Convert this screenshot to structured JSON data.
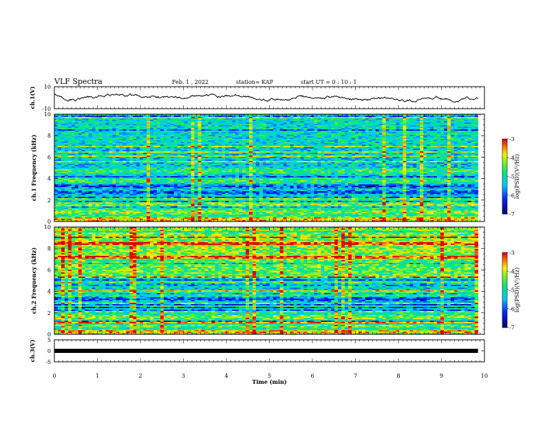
{
  "header": {
    "title": "VLF Spectra",
    "date": "Feb. 1 , 2022",
    "station": "station= KAP",
    "start": "start  UT =   0 : 10 : 1"
  },
  "chart_data": [
    {
      "type": "line",
      "id": "ch1-waveform",
      "ylabel": "ch.1(V)",
      "ylim": [
        -10,
        10
      ],
      "yticks": [
        "10",
        "-10"
      ],
      "x_range_min": [
        0,
        9.85
      ],
      "note_values": "random-walk voltage trace approx within [-6, 7] V"
    },
    {
      "type": "heatmap",
      "id": "ch1-spectrogram",
      "ylabel": "ch.1 Frequency (kHz)",
      "ylim": [
        0,
        10
      ],
      "yticks": [
        "0",
        "2",
        "4",
        "6",
        "8",
        "10"
      ],
      "colorbar": {
        "label": "log(PSD)(V²/Hz)",
        "range": [
          -7,
          -3
        ],
        "ticks": [
          "-3",
          "-4",
          "-5",
          "-6",
          "-7"
        ]
      }
    },
    {
      "type": "heatmap",
      "id": "ch2-spectrogram",
      "ylabel": "ch.2 Frequency (kHz)",
      "ylim": [
        0,
        10
      ],
      "yticks": [
        "0",
        "2",
        "4",
        "6",
        "8",
        "10"
      ],
      "colorbar": {
        "label": "log(PSD)(V²/Hz)",
        "range": [
          -7,
          -3
        ],
        "ticks": [
          "-3",
          "-4",
          "-5",
          "-6",
          "-7"
        ]
      }
    },
    {
      "type": "line",
      "id": "ch3-signal",
      "ylabel": "ch.3(V)",
      "ylim": [
        -5,
        5
      ],
      "yticks": [
        "5",
        "0",
        "-5"
      ],
      "constant_level": 0
    }
  ],
  "xaxis": {
    "label": "Time  (min)",
    "range": [
      0,
      10
    ],
    "ticks": [
      "0",
      "1",
      "2",
      "3",
      "4",
      "5",
      "6",
      "7",
      "8",
      "9",
      "10"
    ]
  }
}
